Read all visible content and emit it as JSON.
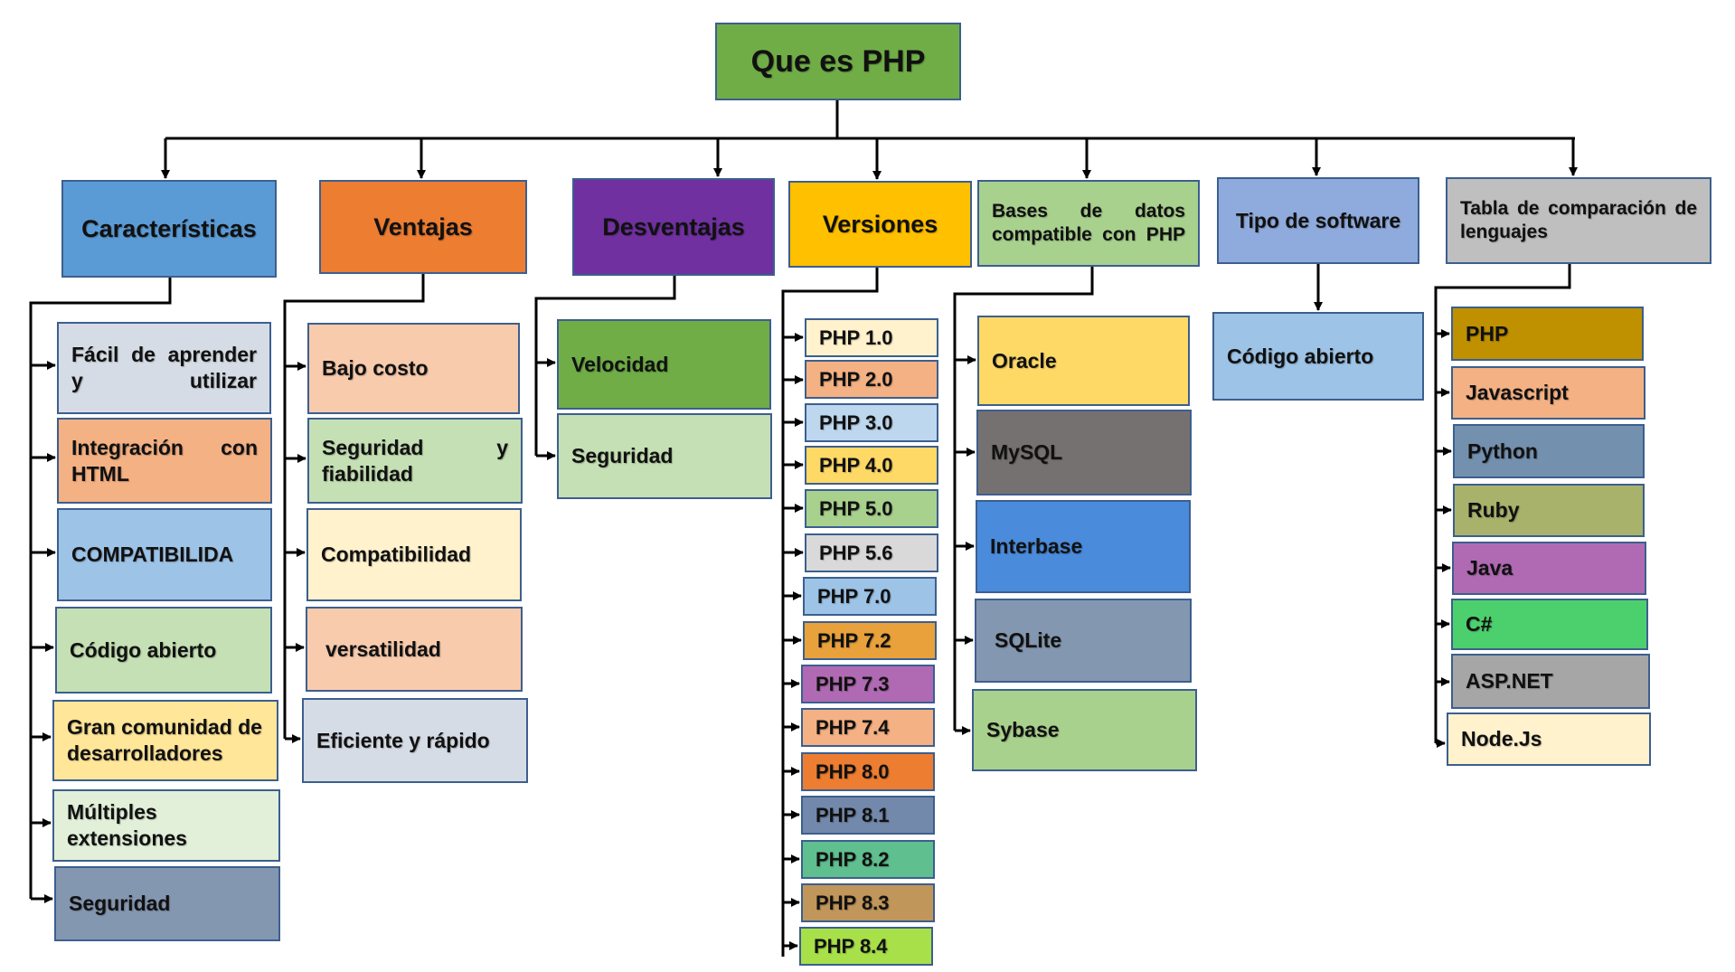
{
  "root": {
    "label": "Que es PHP",
    "color": "#70AD47"
  },
  "branches": {
    "caracteristicas": {
      "label": "Características",
      "color": "#5B9BD5",
      "items": [
        {
          "label": "Fácil de aprender y utilizar",
          "color": "#D6DCE5"
        },
        {
          "label": "Integración con HTML",
          "color": "#F4B183"
        },
        {
          "label": "COMPATIBILIDA",
          "color": "#9DC3E6"
        },
        {
          "label": "Código abierto",
          "color": "#C5E0B4"
        },
        {
          "label": "Gran comunidad de desarrolladores",
          "color": "#FFE699"
        },
        {
          "label": "Múltiples extensiones",
          "color": "#E2F0D9"
        },
        {
          "label": "Seguridad",
          "color": "#8497B0"
        }
      ]
    },
    "ventajas": {
      "label": "Ventajas",
      "color": "#ED7D31",
      "items": [
        {
          "label": "Bajo costo",
          "color": "#F8CBAD"
        },
        {
          "label": "Seguridad y fiabilidad",
          "color": "#C5E0B4"
        },
        {
          "label": "Compatibilidad",
          "color": "#FFF2CC"
        },
        {
          "label": "versatilidad",
          "color": "#F8CBAD"
        },
        {
          "label": "Eficiente y rápido",
          "color": "#D6DCE5"
        }
      ]
    },
    "desventajas": {
      "label": "Desventajas",
      "color": "#7030A0",
      "items": [
        {
          "label": "Velocidad",
          "color": "#70AD47"
        },
        {
          "label": "Seguridad",
          "color": "#C5E0B4"
        }
      ]
    },
    "versiones": {
      "label": "Versiones",
      "color": "#FFC000",
      "items": [
        {
          "label": "PHP 1.0",
          "color": "#FFF2CC"
        },
        {
          "label": "PHP 2.0",
          "color": "#F4B183"
        },
        {
          "label": "PHP 3.0",
          "color": "#BDD7EE"
        },
        {
          "label": "PHP 4.0",
          "color": "#FFD966"
        },
        {
          "label": "PHP 5.0",
          "color": "#A9D18E"
        },
        {
          "label": "PHP 5.6",
          "color": "#D9D9D9"
        },
        {
          "label": "PHP 7.0",
          "color": "#9DC3E6"
        },
        {
          "label": "PHP 7.2",
          "color": "#E9A23B"
        },
        {
          "label": "PHP 7.3",
          "color": "#B06AB3"
        },
        {
          "label": "PHP 7.4",
          "color": "#F4B183"
        },
        {
          "label": "PHP 8.0",
          "color": "#ED7D31"
        },
        {
          "label": "PHP 8.1",
          "color": "#7289AB"
        },
        {
          "label": "PHP 8.2",
          "color": "#5FBF8F"
        },
        {
          "label": "PHP 8.3",
          "color": "#C0965A"
        },
        {
          "label": "PHP 8.4",
          "color": "#A8E04A"
        }
      ]
    },
    "bases": {
      "label": "Bases de datos compatible con PHP",
      "color": "#A9D18E",
      "items": [
        {
          "label": "Oracle",
          "color": "#FFD966"
        },
        {
          "label": "MySQL",
          "color": "#767171"
        },
        {
          "label": "Interbase",
          "color": "#4A8BDB"
        },
        {
          "label": "SQLite",
          "color": "#8497B0"
        },
        {
          "label": "Sybase",
          "color": "#A9D18E"
        }
      ]
    },
    "tipo": {
      "label": "Tipo de software",
      "color": "#8FAADC",
      "items": [
        {
          "label": "Código abierto",
          "color": "#9DC3E6"
        }
      ]
    },
    "tabla": {
      "label": "Tabla de comparación de lenguajes",
      "color": "#BFBFBF",
      "items": [
        {
          "label": "PHP",
          "color": "#BF9000"
        },
        {
          "label": "Javascript",
          "color": "#F4B183"
        },
        {
          "label": "Python",
          "color": "#7390AE"
        },
        {
          "label": "Ruby",
          "color": "#A9B26B"
        },
        {
          "label": "Java",
          "color": "#B06AB3"
        },
        {
          "label": "C#",
          "color": "#4CD06D"
        },
        {
          "label": "ASP.NET",
          "color": "#A6A6A6"
        },
        {
          "label": "Node.Js",
          "color": "#FFF2CC"
        }
      ]
    }
  }
}
